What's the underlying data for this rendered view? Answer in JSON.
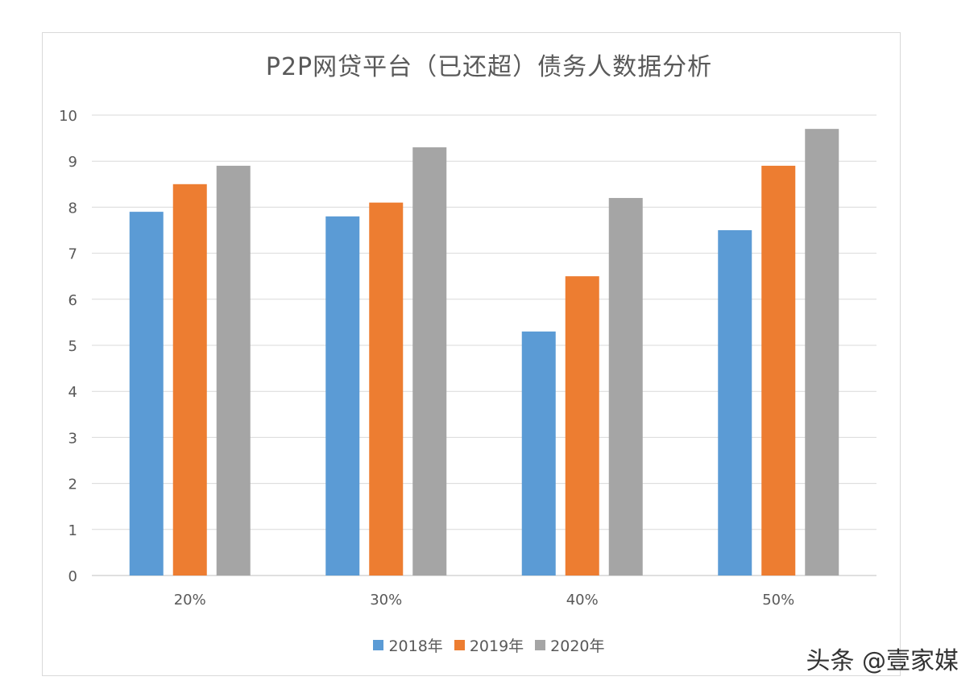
{
  "chart_data": {
    "type": "bar",
    "title": "P2P网贷平台（已还超）债务人数据分析",
    "categories": [
      "20%",
      "30%",
      "40%",
      "50%"
    ],
    "series": [
      {
        "name": "2018年",
        "color": "#5b9bd5",
        "values": [
          7.9,
          7.8,
          5.3,
          7.5
        ]
      },
      {
        "name": "2019年",
        "color": "#ed7d31",
        "values": [
          8.5,
          8.1,
          6.5,
          8.9
        ]
      },
      {
        "name": "2020年",
        "color": "#a5a5a5",
        "values": [
          8.9,
          9.3,
          8.2,
          9.7
        ]
      }
    ],
    "ylim": [
      0,
      10
    ],
    "yticks": [
      "0",
      "1",
      "2",
      "3",
      "4",
      "5",
      "6",
      "7",
      "8",
      "9",
      "10"
    ],
    "grid": true,
    "legend_position": "bottom",
    "xlabel": "",
    "ylabel": ""
  },
  "watermark": "头条 @壹家媒"
}
